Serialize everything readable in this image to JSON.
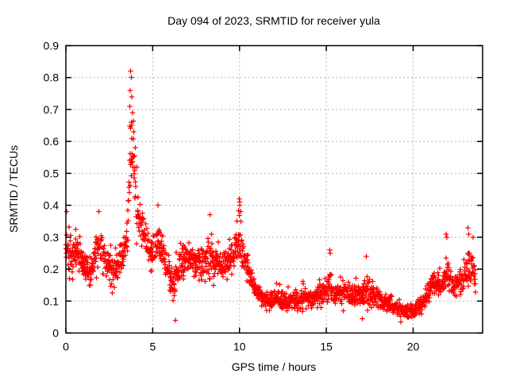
{
  "window": {
    "background": "#ffffff"
  },
  "chart_data": {
    "type": "scatter",
    "title": "Day 094 of 2023, SRMTID for receiver yula",
    "xlabel": "GPS time / hours",
    "ylabel": "SRMTID / TECUs",
    "xlim": [
      0,
      24
    ],
    "ylim": [
      0,
      0.9
    ],
    "xticks": [
      {
        "v": 0,
        "label": "0"
      },
      {
        "v": 5,
        "label": "5"
      },
      {
        "v": 10,
        "label": "10"
      },
      {
        "v": 15,
        "label": "15"
      },
      {
        "v": 20,
        "label": "20"
      }
    ],
    "yticks": [
      {
        "v": 0.0,
        "label": "0"
      },
      {
        "v": 0.1,
        "label": "0.1"
      },
      {
        "v": 0.2,
        "label": "0.2"
      },
      {
        "v": 0.3,
        "label": "0.3"
      },
      {
        "v": 0.4,
        "label": "0.4"
      },
      {
        "v": 0.5,
        "label": "0.5"
      },
      {
        "v": 0.6,
        "label": "0.6"
      },
      {
        "v": 0.7,
        "label": "0.7"
      },
      {
        "v": 0.8,
        "label": "0.8"
      },
      {
        "v": 0.9,
        "label": "0.9"
      }
    ],
    "grid": true,
    "grid_style": "dotted",
    "legend": "none",
    "series_name": "SRMTID",
    "marker": {
      "shape": "plus",
      "color": "#ff0000",
      "size": 6.5,
      "stroke_width": 1.25
    },
    "axis_color": "#000000",
    "grid_color": "#b5b5b5",
    "tick_length": 7,
    "x_start": 0.0,
    "x_end": 23.6,
    "x_step": 0.018,
    "seed": 94,
    "envelope": [
      [
        0.0,
        0.27,
        0.1
      ],
      [
        0.3,
        0.24,
        0.1
      ],
      [
        0.7,
        0.26,
        0.09
      ],
      [
        1.0,
        0.22,
        0.08
      ],
      [
        1.4,
        0.19,
        0.07
      ],
      [
        1.8,
        0.26,
        0.09
      ],
      [
        2.2,
        0.24,
        0.08
      ],
      [
        2.6,
        0.19,
        0.07
      ],
      [
        3.0,
        0.21,
        0.07
      ],
      [
        3.3,
        0.25,
        0.08
      ],
      [
        3.55,
        0.33,
        0.1
      ],
      [
        3.75,
        0.6,
        0.2
      ],
      [
        3.9,
        0.55,
        0.18
      ],
      [
        4.05,
        0.42,
        0.12
      ],
      [
        4.3,
        0.33,
        0.08
      ],
      [
        4.6,
        0.3,
        0.07
      ],
      [
        5.0,
        0.24,
        0.08
      ],
      [
        5.35,
        0.29,
        0.09
      ],
      [
        5.8,
        0.21,
        0.07
      ],
      [
        6.2,
        0.16,
        0.09
      ],
      [
        6.6,
        0.22,
        0.08
      ],
      [
        7.0,
        0.24,
        0.08
      ],
      [
        7.4,
        0.21,
        0.07
      ],
      [
        7.8,
        0.22,
        0.08
      ],
      [
        8.2,
        0.24,
        0.08
      ],
      [
        8.6,
        0.23,
        0.08
      ],
      [
        9.0,
        0.21,
        0.07
      ],
      [
        9.4,
        0.23,
        0.07
      ],
      [
        9.8,
        0.26,
        0.09
      ],
      [
        10.0,
        0.3,
        0.11
      ],
      [
        10.3,
        0.22,
        0.07
      ],
      [
        10.7,
        0.17,
        0.05
      ],
      [
        11.1,
        0.12,
        0.04
      ],
      [
        11.6,
        0.1,
        0.04
      ],
      [
        12.1,
        0.11,
        0.04
      ],
      [
        12.6,
        0.1,
        0.04
      ],
      [
        13.1,
        0.1,
        0.04
      ],
      [
        13.6,
        0.11,
        0.05
      ],
      [
        14.1,
        0.1,
        0.04
      ],
      [
        14.6,
        0.12,
        0.05
      ],
      [
        15.0,
        0.13,
        0.06
      ],
      [
        15.25,
        0.15,
        0.08
      ],
      [
        15.5,
        0.12,
        0.05
      ],
      [
        16.0,
        0.13,
        0.05
      ],
      [
        16.5,
        0.12,
        0.05
      ],
      [
        17.0,
        0.12,
        0.05
      ],
      [
        17.35,
        0.13,
        0.07
      ],
      [
        17.7,
        0.11,
        0.04
      ],
      [
        18.1,
        0.1,
        0.04
      ],
      [
        18.6,
        0.09,
        0.04
      ],
      [
        19.1,
        0.08,
        0.03
      ],
      [
        19.6,
        0.07,
        0.03
      ],
      [
        20.1,
        0.07,
        0.03
      ],
      [
        20.5,
        0.09,
        0.04
      ],
      [
        20.9,
        0.13,
        0.05
      ],
      [
        21.2,
        0.17,
        0.05
      ],
      [
        21.6,
        0.15,
        0.05
      ],
      [
        21.95,
        0.2,
        0.08
      ],
      [
        22.3,
        0.14,
        0.05
      ],
      [
        22.7,
        0.16,
        0.06
      ],
      [
        23.0,
        0.18,
        0.08
      ],
      [
        23.3,
        0.21,
        0.09
      ],
      [
        23.6,
        0.18,
        0.08
      ]
    ],
    "extra_points": [
      [
        3.73,
        0.82
      ],
      [
        3.76,
        0.8
      ],
      [
        3.7,
        0.76
      ],
      [
        3.8,
        0.74
      ],
      [
        3.68,
        0.71
      ],
      [
        3.85,
        0.69
      ],
      [
        3.78,
        0.66
      ],
      [
        3.9,
        0.63
      ],
      [
        4.0,
        0.58
      ],
      [
        4.08,
        0.52
      ],
      [
        9.98,
        0.42
      ],
      [
        10.0,
        0.41
      ],
      [
        10.02,
        0.4
      ],
      [
        10.05,
        0.38
      ],
      [
        15.2,
        0.26
      ],
      [
        15.22,
        0.25
      ],
      [
        17.3,
        0.24
      ],
      [
        21.9,
        0.31
      ],
      [
        21.95,
        0.3
      ],
      [
        23.15,
        0.33
      ],
      [
        23.2,
        0.31
      ],
      [
        0.05,
        0.38
      ],
      [
        1.9,
        0.38
      ],
      [
        5.3,
        0.4
      ],
      [
        6.3,
        0.04
      ],
      [
        8.3,
        0.37
      ],
      [
        19.3,
        0.035
      ],
      [
        23.45,
        0.3
      ]
    ]
  }
}
